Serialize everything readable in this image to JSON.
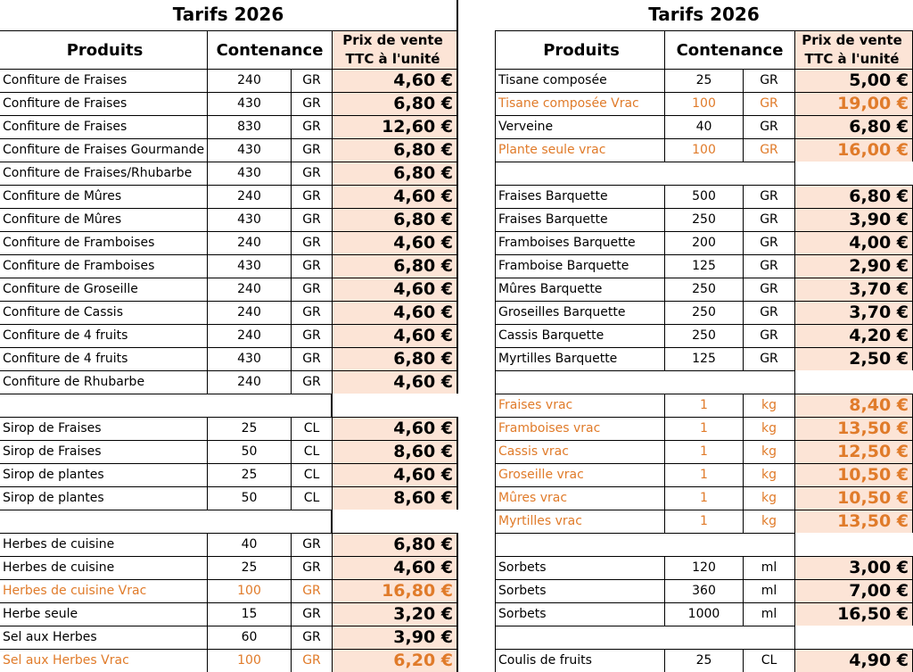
{
  "left": {
    "title": "Tarifs 2026",
    "headers": {
      "produits": "Produits",
      "contenance": "Contenance",
      "prix_line1": "Prix de vente",
      "prix_line2": "TTC à l'unité"
    },
    "rows": [
      {
        "produit": "Confiture de Fraises",
        "qte": "240",
        "unite": "GR",
        "prix": "4,60 €"
      },
      {
        "produit": "Confiture de Fraises",
        "qte": "430",
        "unite": "GR",
        "prix": "6,80 €"
      },
      {
        "produit": "Confiture de Fraises",
        "qte": "830",
        "unite": "GR",
        "prix": "12,60 €"
      },
      {
        "produit": "Confiture de Fraises Gourmande",
        "qte": "430",
        "unite": "GR",
        "prix": "6,80 €"
      },
      {
        "produit": "Confiture de Fraises/Rhubarbe",
        "qte": "430",
        "unite": "GR",
        "prix": "6,80 €"
      },
      {
        "produit": "Confiture de Mûres",
        "qte": "240",
        "unite": "GR",
        "prix": "4,60 €"
      },
      {
        "produit": "Confiture de Mûres",
        "qte": "430",
        "unite": "GR",
        "prix": "6,80 €"
      },
      {
        "produit": "Confiture de Framboises",
        "qte": "240",
        "unite": "GR",
        "prix": "4,60 €"
      },
      {
        "produit": "Confiture de Framboises",
        "qte": "430",
        "unite": "GR",
        "prix": "6,80 €"
      },
      {
        "produit": "Confiture de Groseille",
        "qte": "240",
        "unite": "GR",
        "prix": "4,60 €"
      },
      {
        "produit": "Confiture de Cassis",
        "qte": "240",
        "unite": "GR",
        "prix": "4,60 €"
      },
      {
        "produit": "Confiture de 4 fruits",
        "qte": "240",
        "unite": "GR",
        "prix": "4,60 €"
      },
      {
        "produit": "Confiture de 4 fruits",
        "qte": "430",
        "unite": "GR",
        "prix": "6,80 €"
      },
      {
        "produit": "Confiture de Rhubarbe",
        "qte": "240",
        "unite": "GR",
        "prix": "4,60 €"
      },
      {
        "blank": true
      },
      {
        "produit": "Sirop de Fraises",
        "qte": "25",
        "unite": "CL",
        "prix": "4,60 €"
      },
      {
        "produit": "Sirop de Fraises",
        "qte": "50",
        "unite": "CL",
        "prix": "8,60 €"
      },
      {
        "produit": "Sirop de plantes",
        "qte": "25",
        "unite": "CL",
        "prix": "4,60 €"
      },
      {
        "produit": "Sirop de plantes",
        "qte": "50",
        "unite": "CL",
        "prix": "8,60 €"
      },
      {
        "blank": true
      },
      {
        "produit": "Herbes de cuisine",
        "qte": "40",
        "unite": "GR",
        "prix": "6,80 €"
      },
      {
        "produit": "Herbes de cuisine",
        "qte": "25",
        "unite": "GR",
        "prix": "4,60 €"
      },
      {
        "produit": "Herbes de cuisine Vrac",
        "qte": "100",
        "unite": "GR",
        "prix": "16,80 €",
        "orange": true
      },
      {
        "produit": "Herbe seule",
        "qte": "15",
        "unite": "GR",
        "prix": "3,20 €"
      },
      {
        "produit": "Sel aux Herbes",
        "qte": "60",
        "unite": "GR",
        "prix": "3,90 €"
      },
      {
        "produit": "Sel aux Herbes Vrac",
        "qte": "100",
        "unite": "GR",
        "prix": "6,20 €",
        "orange": true
      }
    ]
  },
  "right": {
    "title": "Tarifs 2026",
    "headers": {
      "produits": "Produits",
      "contenance": "Contenance",
      "prix_line1": "Prix de vente",
      "prix_line2": "TTC à l'unité"
    },
    "rows": [
      {
        "produit": "Tisane composée",
        "qte": "25",
        "unite": "GR",
        "prix": "5,00 €"
      },
      {
        "produit": "Tisane composée Vrac",
        "qte": "100",
        "unite": "GR",
        "prix": "19,00 €",
        "orange": true
      },
      {
        "produit": "Verveine",
        "qte": "40",
        "unite": "GR",
        "prix": "6,80 €"
      },
      {
        "produit": "Plante seule vrac",
        "qte": "100",
        "unite": "GR",
        "prix": "16,00 €",
        "orange": true
      },
      {
        "blank": true
      },
      {
        "produit": "Fraises Barquette",
        "qte": "500",
        "unite": "GR",
        "prix": "6,80 €"
      },
      {
        "produit": "Fraises Barquette",
        "qte": "250",
        "unite": "GR",
        "prix": "3,90 €"
      },
      {
        "produit": "Framboises Barquette",
        "qte": "200",
        "unite": "GR",
        "prix": "4,00 €"
      },
      {
        "produit": "Framboise Barquette",
        "qte": "125",
        "unite": "GR",
        "prix": "2,90 €"
      },
      {
        "produit": "Mûres Barquette",
        "qte": "250",
        "unite": "GR",
        "prix": "3,70 €"
      },
      {
        "produit": "Groseilles Barquette",
        "qte": "250",
        "unite": "GR",
        "prix": "3,70 €"
      },
      {
        "produit": "Cassis Barquette",
        "qte": "250",
        "unite": "GR",
        "prix": "4,20 €"
      },
      {
        "produit": "Myrtilles Barquette",
        "qte": "125",
        "unite": "GR",
        "prix": "2,50 €"
      },
      {
        "blank": true
      },
      {
        "produit": "Fraises vrac",
        "qte": "1",
        "unite": "kg",
        "prix": "8,40 €",
        "orange": true
      },
      {
        "produit": "Framboises vrac",
        "qte": "1",
        "unite": "kg",
        "prix": "13,50 €",
        "orange": true
      },
      {
        "produit": "Cassis vrac",
        "qte": "1",
        "unite": "kg",
        "prix": "12,50 €",
        "orange": true
      },
      {
        "produit": "Groseille vrac",
        "qte": "1",
        "unite": "kg",
        "prix": "10,50 €",
        "orange": true
      },
      {
        "produit": "Mûres vrac",
        "qte": "1",
        "unite": "kg",
        "prix": "10,50 €",
        "orange": true
      },
      {
        "produit": "Myrtilles vrac",
        "qte": "1",
        "unite": "kg",
        "prix": "13,50 €",
        "orange": true
      },
      {
        "blank": true
      },
      {
        "produit": "Sorbets",
        "qte": "120",
        "unite": "ml",
        "prix": "3,00 €"
      },
      {
        "produit": "Sorbets",
        "qte": "360",
        "unite": "ml",
        "prix": "7,00 €"
      },
      {
        "produit": "Sorbets",
        "qte": "1000",
        "unite": "ml",
        "prix": "16,50 €"
      },
      {
        "blank": true
      },
      {
        "produit": "Coulis de fruits",
        "qte": "25",
        "unite": "CL",
        "prix": "4,90 €"
      }
    ]
  },
  "colors": {
    "price_bg": "#fce4d6",
    "bulk_text": "#e07b2a",
    "text": "#000000"
  }
}
